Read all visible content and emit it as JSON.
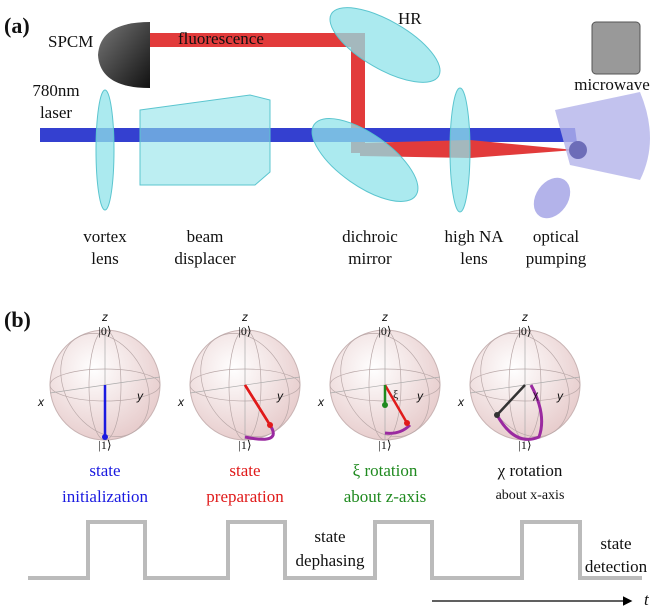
{
  "panel_a": {
    "label": "(a)",
    "spcm": "SPCM",
    "fluorescence": "fluorescence",
    "hr": "HR",
    "microwave": "microwave",
    "laser": [
      "780nm",
      "laser"
    ],
    "vortex_lens": [
      "vortex",
      "lens"
    ],
    "beam_displacer": [
      "beam",
      "displacer"
    ],
    "dichroic_mirror": [
      "dichroic",
      "mirror"
    ],
    "high_na_lens": [
      "high NA",
      "lens"
    ],
    "optical_pumping": [
      "optical",
      "pumping"
    ]
  },
  "panel_b": {
    "label": "(b)",
    "spheres": [
      {
        "z": "z",
        "ket0": "|0⟩",
        "ket1": "|1⟩",
        "x": "x",
        "y": "y"
      },
      {
        "z": "z",
        "ket0": "|0⟩",
        "ket1": "|1⟩",
        "x": "x",
        "y": "y"
      },
      {
        "z": "z",
        "ket0": "|0⟩",
        "ket1": "|1⟩",
        "x": "x",
        "y": "y",
        "angle": "ξ"
      },
      {
        "z": "z",
        "ket0": "|0⟩",
        "ket1": "|1⟩",
        "x": "x",
        "y": "y",
        "angle": "χ"
      }
    ],
    "stages": [
      [
        "state",
        "initialization"
      ],
      [
        "state",
        "preparation"
      ],
      [
        "ξ rotation",
        "about z-axis"
      ],
      [
        "χ rotation",
        "about x-axis"
      ]
    ],
    "dephasing": [
      "state",
      "dephasing"
    ],
    "detection": [
      "state",
      "detection"
    ],
    "time": "t"
  }
}
